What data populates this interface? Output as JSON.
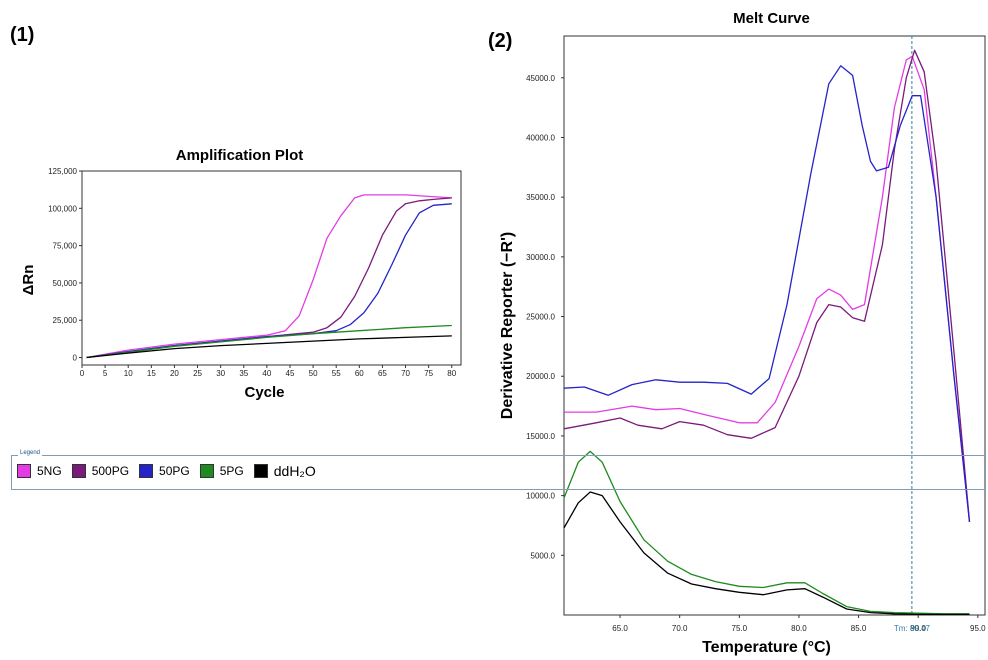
{
  "panel1_label": "(1)",
  "panel2_label": "(2)",
  "legend": {
    "title": "Legend",
    "items": [
      {
        "label": "5NG",
        "color": "#e43ce4"
      },
      {
        "label": "500PG",
        "color": "#7a1a7a"
      },
      {
        "label": "50PG",
        "color": "#2424c8"
      },
      {
        "label": "5PG",
        "color": "#1f8a1f"
      },
      {
        "label": "ddH₂O",
        "color": "#000000"
      }
    ]
  },
  "chart_data": [
    {
      "type": "line",
      "title": "Amplification Plot",
      "xlabel": "Cycle",
      "ylabel": "ΔRn",
      "xlim": [
        0,
        82
      ],
      "ylim": [
        -5000,
        125000
      ],
      "x_ticks": [
        0,
        5,
        10,
        15,
        20,
        25,
        30,
        35,
        40,
        45,
        50,
        55,
        60,
        65,
        70,
        75,
        80
      ],
      "y_ticks": [
        0,
        25000,
        50000,
        75000,
        100000,
        125000
      ],
      "y_tick_labels": [
        "0",
        "25,000",
        "50,000",
        "75,000",
        "100,000",
        "125,000"
      ],
      "series": [
        {
          "name": "5NG",
          "color": "#e43ce4",
          "x": [
            1,
            10,
            20,
            30,
            40,
            44,
            47,
            50,
            53,
            56,
            59,
            61,
            65,
            70,
            75,
            80
          ],
          "y": [
            0,
            5000,
            9000,
            12000,
            15000,
            18000,
            28000,
            52000,
            80000,
            95000,
            107000,
            109000,
            109000,
            109000,
            108000,
            107000
          ]
        },
        {
          "name": "500PG",
          "color": "#7a1a7a",
          "x": [
            1,
            10,
            20,
            30,
            40,
            50,
            53,
            56,
            59,
            62,
            65,
            68,
            70,
            73,
            76,
            80
          ],
          "y": [
            0,
            4000,
            8000,
            11000,
            14000,
            17000,
            20000,
            27000,
            41000,
            60000,
            82000,
            98000,
            103000,
            105000,
            106000,
            107000
          ]
        },
        {
          "name": "50PG",
          "color": "#2424c8",
          "x": [
            1,
            10,
            20,
            30,
            40,
            50,
            55,
            58,
            61,
            64,
            67,
            70,
            73,
            76,
            80
          ],
          "y": [
            0,
            4000,
            8000,
            11000,
            14000,
            16000,
            18000,
            22000,
            30000,
            43000,
            62000,
            82000,
            97000,
            102000,
            103000
          ]
        },
        {
          "name": "5PG",
          "color": "#1f8a1f",
          "x": [
            1,
            10,
            20,
            30,
            40,
            50,
            60,
            70,
            80
          ],
          "y": [
            0,
            3500,
            7500,
            10500,
            13500,
            16000,
            18000,
            20000,
            21500
          ]
        },
        {
          "name": "ddH₂O",
          "color": "#000000",
          "x": [
            1,
            10,
            20,
            30,
            40,
            50,
            60,
            70,
            80
          ],
          "y": [
            0,
            3000,
            6000,
            8000,
            9500,
            11000,
            12500,
            13500,
            14500
          ]
        }
      ]
    },
    {
      "type": "line",
      "title": "Melt Curve",
      "xlabel": "Temperature (°C)",
      "ylabel": "Derivative Reporter (−R')",
      "xlim": [
        60.3,
        95.6
      ],
      "ylim": [
        0,
        48500
      ],
      "x_ticks": [
        65,
        70,
        75,
        80,
        85,
        90,
        95
      ],
      "x_tick_labels": [
        "65.0",
        "70.0",
        "75.0",
        "80.0",
        "85.0",
        "90.0",
        "95.0"
      ],
      "y_ticks": [
        5000,
        10000,
        15000,
        20000,
        25000,
        30000,
        35000,
        40000,
        45000
      ],
      "y_tick_labels": [
        "5000.0",
        "10000.0",
        "15000.0",
        "20000.0",
        "25000.0",
        "30000.0",
        "35000.0",
        "40000.0",
        "45000.0"
      ],
      "tm_marker": {
        "x": 89.47,
        "label": "Tm: 89.47"
      },
      "series": [
        {
          "name": "5NG",
          "color": "#e43ce4",
          "x": [
            60.3,
            63,
            66,
            68,
            70,
            72,
            75,
            76.5,
            78,
            80,
            81.5,
            82.5,
            83.5,
            84.5,
            85.5,
            87,
            88,
            89,
            89.5,
            90.5,
            91.5,
            93,
            94.3
          ],
          "y": [
            17000,
            17000,
            17500,
            17200,
            17300,
            16800,
            16100,
            16100,
            17800,
            22500,
            26500,
            27300,
            26800,
            25600,
            26000,
            35000,
            42500,
            46500,
            46800,
            44000,
            35000,
            20000,
            7800
          ]
        },
        {
          "name": "500PG",
          "color": "#7a1a7a",
          "x": [
            60.3,
            63,
            65,
            66.5,
            68.5,
            70,
            72,
            74,
            76,
            78,
            80,
            81.5,
            82.5,
            83.5,
            84.5,
            85.5,
            87,
            88,
            89,
            89.7,
            90.5,
            91.5,
            93,
            94.3
          ],
          "y": [
            15600,
            16100,
            16500,
            15900,
            15600,
            16200,
            15900,
            15100,
            14800,
            15700,
            20000,
            24500,
            26000,
            25800,
            24900,
            24600,
            31000,
            39000,
            45000,
            47300,
            45500,
            38000,
            22000,
            7800
          ]
        },
        {
          "name": "50PG",
          "color": "#2424c8",
          "x": [
            60.3,
            62,
            64,
            66,
            68,
            70,
            72,
            74,
            76,
            77.5,
            79,
            81,
            82.5,
            83.5,
            84.5,
            85.3,
            86,
            86.5,
            87.5,
            88.5,
            89.5,
            90.2,
            91.5,
            93,
            94.3
          ],
          "y": [
            19000,
            19100,
            18400,
            19300,
            19700,
            19500,
            19500,
            19400,
            18500,
            19800,
            26000,
            37000,
            44500,
            46000,
            45200,
            41000,
            38000,
            37200,
            37500,
            41000,
            43500,
            43500,
            35000,
            20000,
            7800
          ]
        },
        {
          "name": "5PG",
          "color": "#1f8a1f",
          "x": [
            60.3,
            61.5,
            62.5,
            63.5,
            65,
            67,
            69,
            71,
            73,
            75,
            77,
            79,
            80.5,
            82,
            84,
            86,
            88,
            90,
            92,
            94.3
          ],
          "y": [
            9800,
            12800,
            13700,
            12800,
            9500,
            6300,
            4500,
            3400,
            2800,
            2400,
            2300,
            2700,
            2700,
            1800,
            700,
            300,
            200,
            150,
            100,
            100
          ]
        },
        {
          "name": "ddH₂O",
          "color": "#000000",
          "x": [
            60.3,
            61.5,
            62.5,
            63.5,
            65,
            67,
            69,
            71,
            73,
            75,
            77,
            79,
            80.5,
            82,
            84,
            86,
            88,
            90,
            92,
            94.3
          ],
          "y": [
            7300,
            9400,
            10300,
            10000,
            7800,
            5200,
            3500,
            2600,
            2200,
            1900,
            1700,
            2100,
            2200,
            1500,
            500,
            200,
            100,
            50,
            50,
            50
          ]
        }
      ]
    }
  ]
}
